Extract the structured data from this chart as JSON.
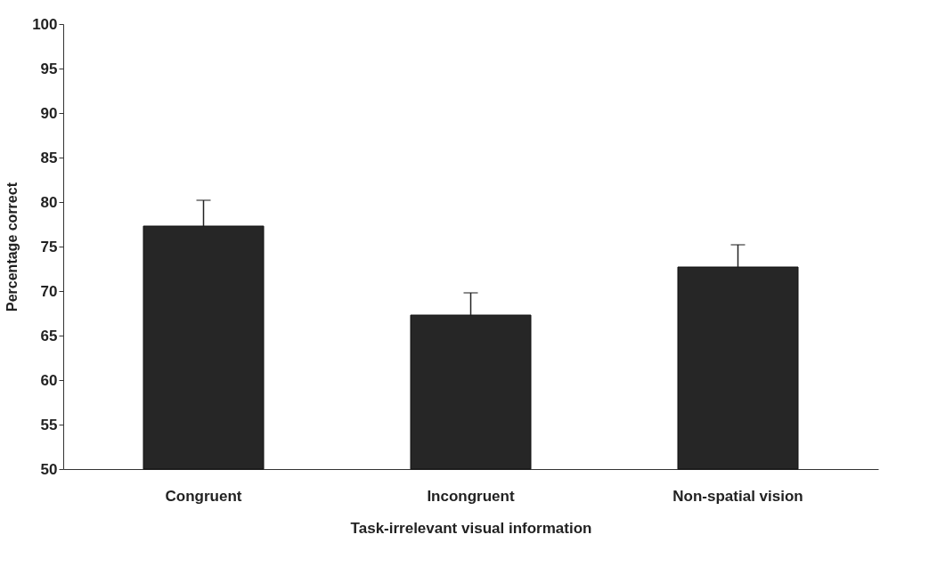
{
  "chart_data": {
    "type": "bar",
    "xlabel": "Task-irrelevant visual information",
    "ylabel": "Percentage correct",
    "categories": [
      "Congruent",
      "Incongruent",
      "Non-spatial vision"
    ],
    "values": [
      77.3,
      67.3,
      72.7
    ],
    "errors": [
      [
        77.3,
        80.2
      ],
      [
        67.3,
        69.8
      ],
      [
        72.7,
        75.2
      ]
    ],
    "color": "#262626",
    "ylim": [
      50,
      100
    ],
    "yticks": [
      50,
      55,
      60,
      65,
      70,
      75,
      80,
      85,
      90,
      95,
      100
    ],
    "grid": false
  }
}
